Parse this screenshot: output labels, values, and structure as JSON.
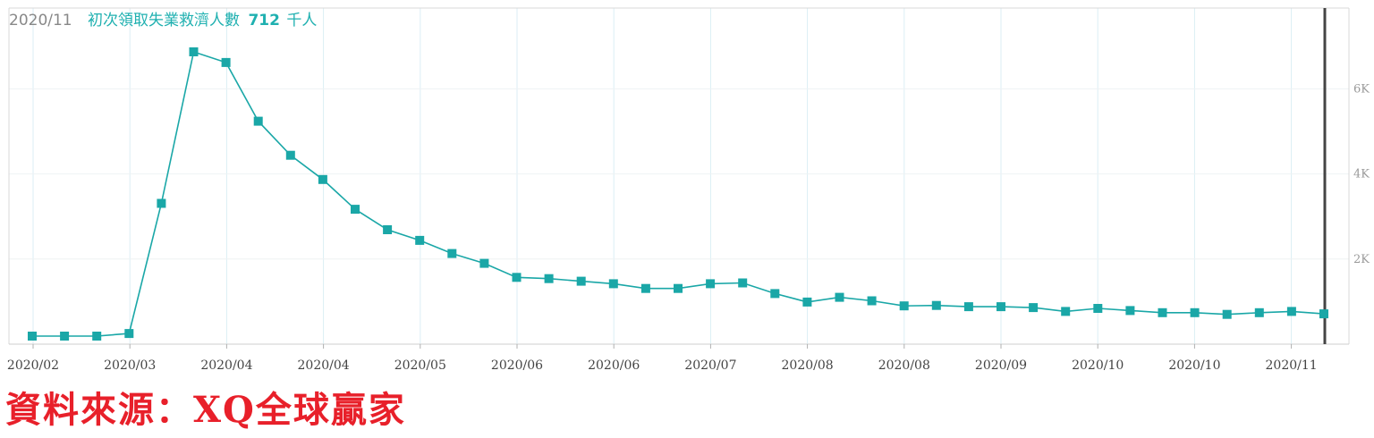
{
  "header": {
    "date": "2020/11",
    "label": "初次領取失業救濟人數",
    "value": "712",
    "unit": "千人"
  },
  "source_note": "資料來源：XQ全球贏家",
  "colors": {
    "series": "#1aa7a7",
    "source": "#e8202a",
    "cursor": "#444444"
  },
  "chart_data": {
    "type": "line",
    "title": "初次領取失業救濟人數",
    "unit": "千人",
    "x_tick_labels": [
      "2020/02",
      "2020/03",
      "2020/04",
      "2020/04",
      "2020/05",
      "2020/06",
      "2020/06",
      "2020/07",
      "2020/08",
      "2020/08",
      "2020/09",
      "2020/10",
      "2020/10",
      "2020/11"
    ],
    "y_tick_labels": [
      "2K",
      "4K",
      "6K"
    ],
    "y_ticks": [
      2000,
      4000,
      6000
    ],
    "ylim": [
      0,
      7900
    ],
    "grid": true,
    "marker": "square",
    "series": [
      {
        "values": [
          190,
          190,
          190,
          250,
          3310,
          6870,
          6620,
          5240,
          4440,
          3870,
          3170,
          2690,
          2440,
          2130,
          1900,
          1570,
          1540,
          1480,
          1420,
          1310,
          1310,
          1420,
          1440,
          1190,
          990,
          1100,
          1020,
          900,
          910,
          880,
          880,
          860,
          770,
          840,
          790,
          740,
          740,
          700,
          740,
          770,
          712
        ]
      }
    ]
  }
}
